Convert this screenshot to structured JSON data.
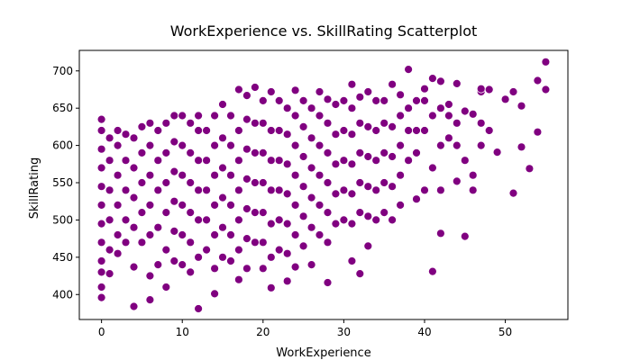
{
  "chart_data": {
    "type": "scatter",
    "title": "WorkExperience vs. SkillRating Scatterplot",
    "xlabel": "WorkExperience",
    "ylabel": "SkillRating",
    "xlim": [
      -2.75,
      57.75
    ],
    "ylim": [
      366.5,
      727.5
    ],
    "x_ticks": [
      0,
      10,
      20,
      30,
      40,
      50
    ],
    "y_ticks": [
      400,
      450,
      500,
      550,
      600,
      650,
      700
    ],
    "grid": false,
    "legend": "none",
    "marker_color": "#800080",
    "marker_edge_color": "#ffffff",
    "points": [
      [
        0,
        396
      ],
      [
        0,
        410
      ],
      [
        0,
        430
      ],
      [
        0,
        445
      ],
      [
        0,
        470
      ],
      [
        0,
        495
      ],
      [
        0,
        520
      ],
      [
        0,
        545
      ],
      [
        0,
        570
      ],
      [
        0,
        595
      ],
      [
        0,
        620
      ],
      [
        0,
        635
      ],
      [
        1,
        428
      ],
      [
        1,
        460
      ],
      [
        1,
        500
      ],
      [
        1,
        540
      ],
      [
        1,
        580
      ],
      [
        1,
        610
      ],
      [
        2,
        455
      ],
      [
        2,
        480
      ],
      [
        2,
        520
      ],
      [
        2,
        560
      ],
      [
        2,
        600
      ],
      [
        2,
        620
      ],
      [
        3,
        470
      ],
      [
        3,
        500
      ],
      [
        3,
        540
      ],
      [
        3,
        580
      ],
      [
        3,
        615
      ],
      [
        4,
        384
      ],
      [
        4,
        437
      ],
      [
        4,
        490
      ],
      [
        4,
        530
      ],
      [
        4,
        570
      ],
      [
        4,
        610
      ],
      [
        5,
        470
      ],
      [
        5,
        510
      ],
      [
        5,
        550
      ],
      [
        5,
        590
      ],
      [
        5,
        625
      ],
      [
        6,
        393
      ],
      [
        6,
        425
      ],
      [
        6,
        480
      ],
      [
        6,
        520
      ],
      [
        6,
        560
      ],
      [
        6,
        600
      ],
      [
        6,
        630
      ],
      [
        7,
        440
      ],
      [
        7,
        490
      ],
      [
        7,
        540
      ],
      [
        7,
        580
      ],
      [
        7,
        620
      ],
      [
        8,
        410
      ],
      [
        8,
        460
      ],
      [
        8,
        510
      ],
      [
        8,
        550
      ],
      [
        8,
        590
      ],
      [
        8,
        630
      ],
      [
        9,
        445
      ],
      [
        9,
        485
      ],
      [
        9,
        525
      ],
      [
        9,
        565
      ],
      [
        9,
        605
      ],
      [
        9,
        640
      ],
      [
        10,
        440
      ],
      [
        10,
        480
      ],
      [
        10,
        520
      ],
      [
        10,
        560
      ],
      [
        10,
        600
      ],
      [
        10,
        640
      ],
      [
        11,
        430
      ],
      [
        11,
        470
      ],
      [
        11,
        510
      ],
      [
        11,
        550
      ],
      [
        11,
        590
      ],
      [
        11,
        630
      ],
      [
        12,
        381
      ],
      [
        12,
        450
      ],
      [
        12,
        500
      ],
      [
        12,
        540
      ],
      [
        12,
        580
      ],
      [
        12,
        620
      ],
      [
        12,
        640
      ],
      [
        13,
        460
      ],
      [
        13,
        500
      ],
      [
        13,
        540
      ],
      [
        13,
        580
      ],
      [
        13,
        620
      ],
      [
        14,
        401
      ],
      [
        14,
        435
      ],
      [
        14,
        480
      ],
      [
        14,
        520
      ],
      [
        14,
        560
      ],
      [
        14,
        600
      ],
      [
        14,
        640
      ],
      [
        15,
        450
      ],
      [
        15,
        490
      ],
      [
        15,
        530
      ],
      [
        15,
        570
      ],
      [
        15,
        610
      ],
      [
        15,
        655
      ],
      [
        16,
        445
      ],
      [
        16,
        480
      ],
      [
        16,
        520
      ],
      [
        16,
        560
      ],
      [
        16,
        600
      ],
      [
        16,
        640
      ],
      [
        17,
        420
      ],
      [
        17,
        460
      ],
      [
        17,
        500
      ],
      [
        17,
        540
      ],
      [
        17,
        580
      ],
      [
        17,
        620
      ],
      [
        17,
        675
      ],
      [
        18,
        435
      ],
      [
        18,
        475
      ],
      [
        18,
        515
      ],
      [
        18,
        555
      ],
      [
        18,
        595
      ],
      [
        18,
        635
      ],
      [
        18,
        667
      ],
      [
        19,
        470
      ],
      [
        19,
        510
      ],
      [
        19,
        550
      ],
      [
        19,
        590
      ],
      [
        19,
        630
      ],
      [
        19,
        678
      ],
      [
        20,
        435
      ],
      [
        20,
        470
      ],
      [
        20,
        510
      ],
      [
        20,
        550
      ],
      [
        20,
        590
      ],
      [
        20,
        630
      ],
      [
        20,
        660
      ],
      [
        21,
        409
      ],
      [
        21,
        450
      ],
      [
        21,
        495
      ],
      [
        21,
        540
      ],
      [
        21,
        580
      ],
      [
        21,
        620
      ],
      [
        21,
        672
      ],
      [
        22,
        460
      ],
      [
        22,
        500
      ],
      [
        22,
        540
      ],
      [
        22,
        580
      ],
      [
        22,
        620
      ],
      [
        22,
        660
      ],
      [
        23,
        418
      ],
      [
        23,
        455
      ],
      [
        23,
        495
      ],
      [
        23,
        535
      ],
      [
        23,
        575
      ],
      [
        23,
        615
      ],
      [
        23,
        650
      ],
      [
        24,
        437
      ],
      [
        24,
        480
      ],
      [
        24,
        520
      ],
      [
        24,
        560
      ],
      [
        24,
        600
      ],
      [
        24,
        640
      ],
      [
        24,
        674
      ],
      [
        25,
        465
      ],
      [
        25,
        505
      ],
      [
        25,
        545
      ],
      [
        25,
        585
      ],
      [
        25,
        625
      ],
      [
        25,
        660
      ],
      [
        26,
        440
      ],
      [
        26,
        490
      ],
      [
        26,
        530
      ],
      [
        26,
        570
      ],
      [
        26,
        610
      ],
      [
        26,
        650
      ],
      [
        27,
        480
      ],
      [
        27,
        520
      ],
      [
        27,
        560
      ],
      [
        27,
        600
      ],
      [
        27,
        640
      ],
      [
        27,
        672
      ],
      [
        28,
        416
      ],
      [
        28,
        470
      ],
      [
        28,
        510
      ],
      [
        28,
        550
      ],
      [
        28,
        590
      ],
      [
        28,
        630
      ],
      [
        28,
        662
      ],
      [
        29,
        495
      ],
      [
        29,
        535
      ],
      [
        29,
        575
      ],
      [
        29,
        615
      ],
      [
        29,
        655
      ],
      [
        30,
        500
      ],
      [
        30,
        540
      ],
      [
        30,
        580
      ],
      [
        30,
        620
      ],
      [
        30,
        660
      ],
      [
        31,
        445
      ],
      [
        31,
        495
      ],
      [
        31,
        535
      ],
      [
        31,
        575
      ],
      [
        31,
        615
      ],
      [
        31,
        650
      ],
      [
        31,
        682
      ],
      [
        32,
        428
      ],
      [
        32,
        510
      ],
      [
        32,
        550
      ],
      [
        32,
        590
      ],
      [
        32,
        630
      ],
      [
        32,
        665
      ],
      [
        33,
        465
      ],
      [
        33,
        505
      ],
      [
        33,
        545
      ],
      [
        33,
        585
      ],
      [
        33,
        625
      ],
      [
        33,
        672
      ],
      [
        34,
        500
      ],
      [
        34,
        540
      ],
      [
        34,
        580
      ],
      [
        34,
        620
      ],
      [
        34,
        660
      ],
      [
        35,
        510
      ],
      [
        35,
        550
      ],
      [
        35,
        590
      ],
      [
        35,
        630
      ],
      [
        35,
        660
      ],
      [
        36,
        500
      ],
      [
        36,
        545
      ],
      [
        36,
        585
      ],
      [
        36,
        625
      ],
      [
        36,
        682
      ],
      [
        37,
        520
      ],
      [
        37,
        560
      ],
      [
        37,
        600
      ],
      [
        37,
        640
      ],
      [
        37,
        668
      ],
      [
        38,
        580
      ],
      [
        38,
        620
      ],
      [
        38,
        650
      ],
      [
        38,
        702
      ],
      [
        39,
        528
      ],
      [
        39,
        590
      ],
      [
        39,
        620
      ],
      [
        39,
        660
      ],
      [
        40,
        540
      ],
      [
        40,
        620
      ],
      [
        40,
        660
      ],
      [
        40,
        676
      ],
      [
        41,
        431
      ],
      [
        41,
        570
      ],
      [
        41,
        640
      ],
      [
        41,
        690
      ],
      [
        42,
        482
      ],
      [
        42,
        540
      ],
      [
        42,
        600
      ],
      [
        42,
        650
      ],
      [
        42,
        686
      ],
      [
        43,
        610
      ],
      [
        43,
        640
      ],
      [
        43,
        655
      ],
      [
        44,
        552
      ],
      [
        44,
        600
      ],
      [
        44,
        630
      ],
      [
        44,
        683
      ],
      [
        45,
        478
      ],
      [
        45,
        580
      ],
      [
        45,
        646
      ],
      [
        46,
        540
      ],
      [
        46,
        560
      ],
      [
        46,
        642
      ],
      [
        47,
        600
      ],
      [
        47,
        630
      ],
      [
        47,
        672
      ],
      [
        47,
        676
      ],
      [
        48,
        620
      ],
      [
        48,
        675
      ],
      [
        49,
        591
      ],
      [
        50,
        662
      ],
      [
        51,
        536
      ],
      [
        51,
        672
      ],
      [
        52,
        598
      ],
      [
        52,
        653
      ],
      [
        53,
        569
      ],
      [
        54,
        618
      ],
      [
        54,
        687
      ],
      [
        55,
        712
      ],
      [
        55,
        675
      ]
    ]
  }
}
